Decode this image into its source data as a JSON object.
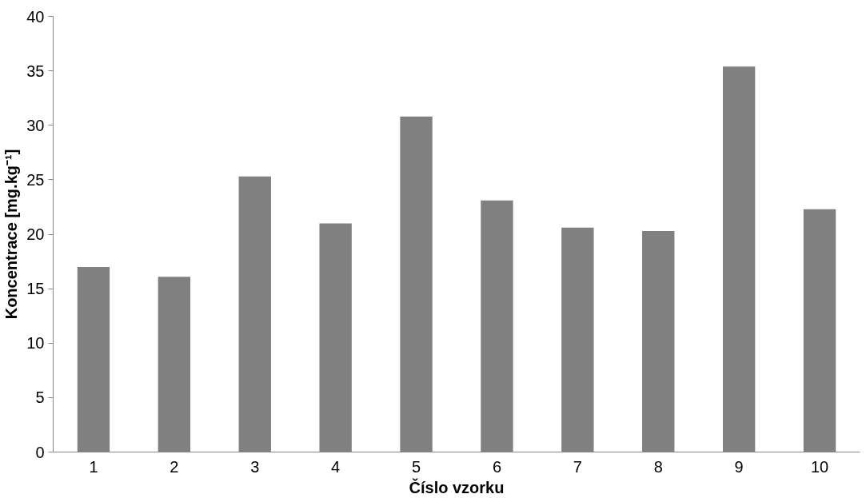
{
  "chart_data": {
    "type": "bar",
    "xlabel": "Číslo vzorku",
    "ylabel": "Koncentrace [mg.kg⁻¹]",
    "categories": [
      "1",
      "2",
      "3",
      "4",
      "5",
      "6",
      "7",
      "8",
      "9",
      "10"
    ],
    "values": [
      17.0,
      16.1,
      25.3,
      21.0,
      30.8,
      23.1,
      20.6,
      20.3,
      35.4,
      22.3
    ],
    "color": "#808080",
    "ylim": [
      0,
      40
    ],
    "yticks": [
      0,
      5,
      10,
      15,
      20,
      25,
      30,
      35,
      40
    ],
    "grid": false
  }
}
